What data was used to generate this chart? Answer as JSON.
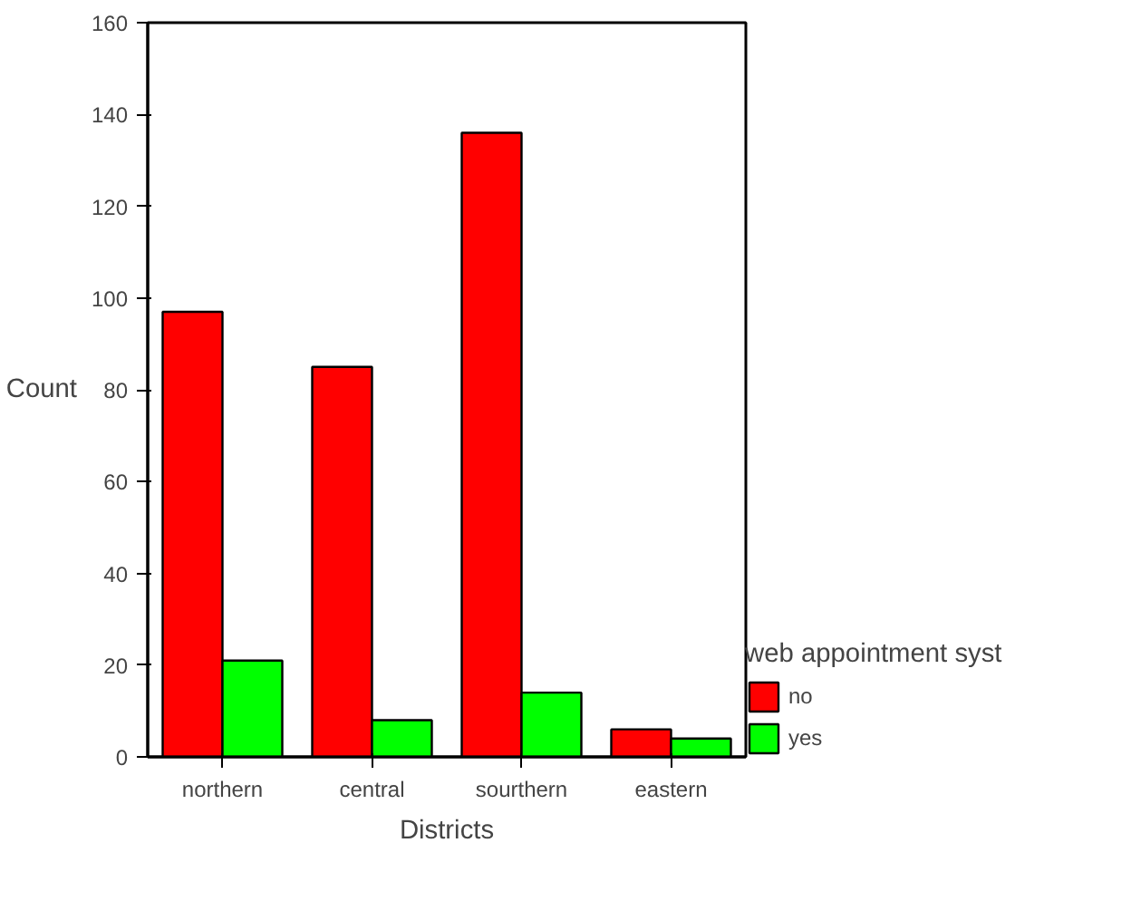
{
  "chart_data": {
    "type": "bar",
    "xlabel": "Districts",
    "ylabel": "Count",
    "legend_title": "web appointment syst",
    "categories": [
      "northern",
      "central",
      "sourthern",
      "eastern"
    ],
    "series": [
      {
        "name": "no",
        "color": "#ff0000",
        "values": [
          97,
          85,
          136,
          6
        ]
      },
      {
        "name": "yes",
        "color": "#00ff00",
        "values": [
          21,
          8,
          14,
          4
        ]
      }
    ],
    "ylim": [
      0,
      160
    ],
    "yticks": [
      0,
      20,
      40,
      60,
      80,
      100,
      120,
      140,
      160
    ],
    "grid": false,
    "legend": "right"
  }
}
